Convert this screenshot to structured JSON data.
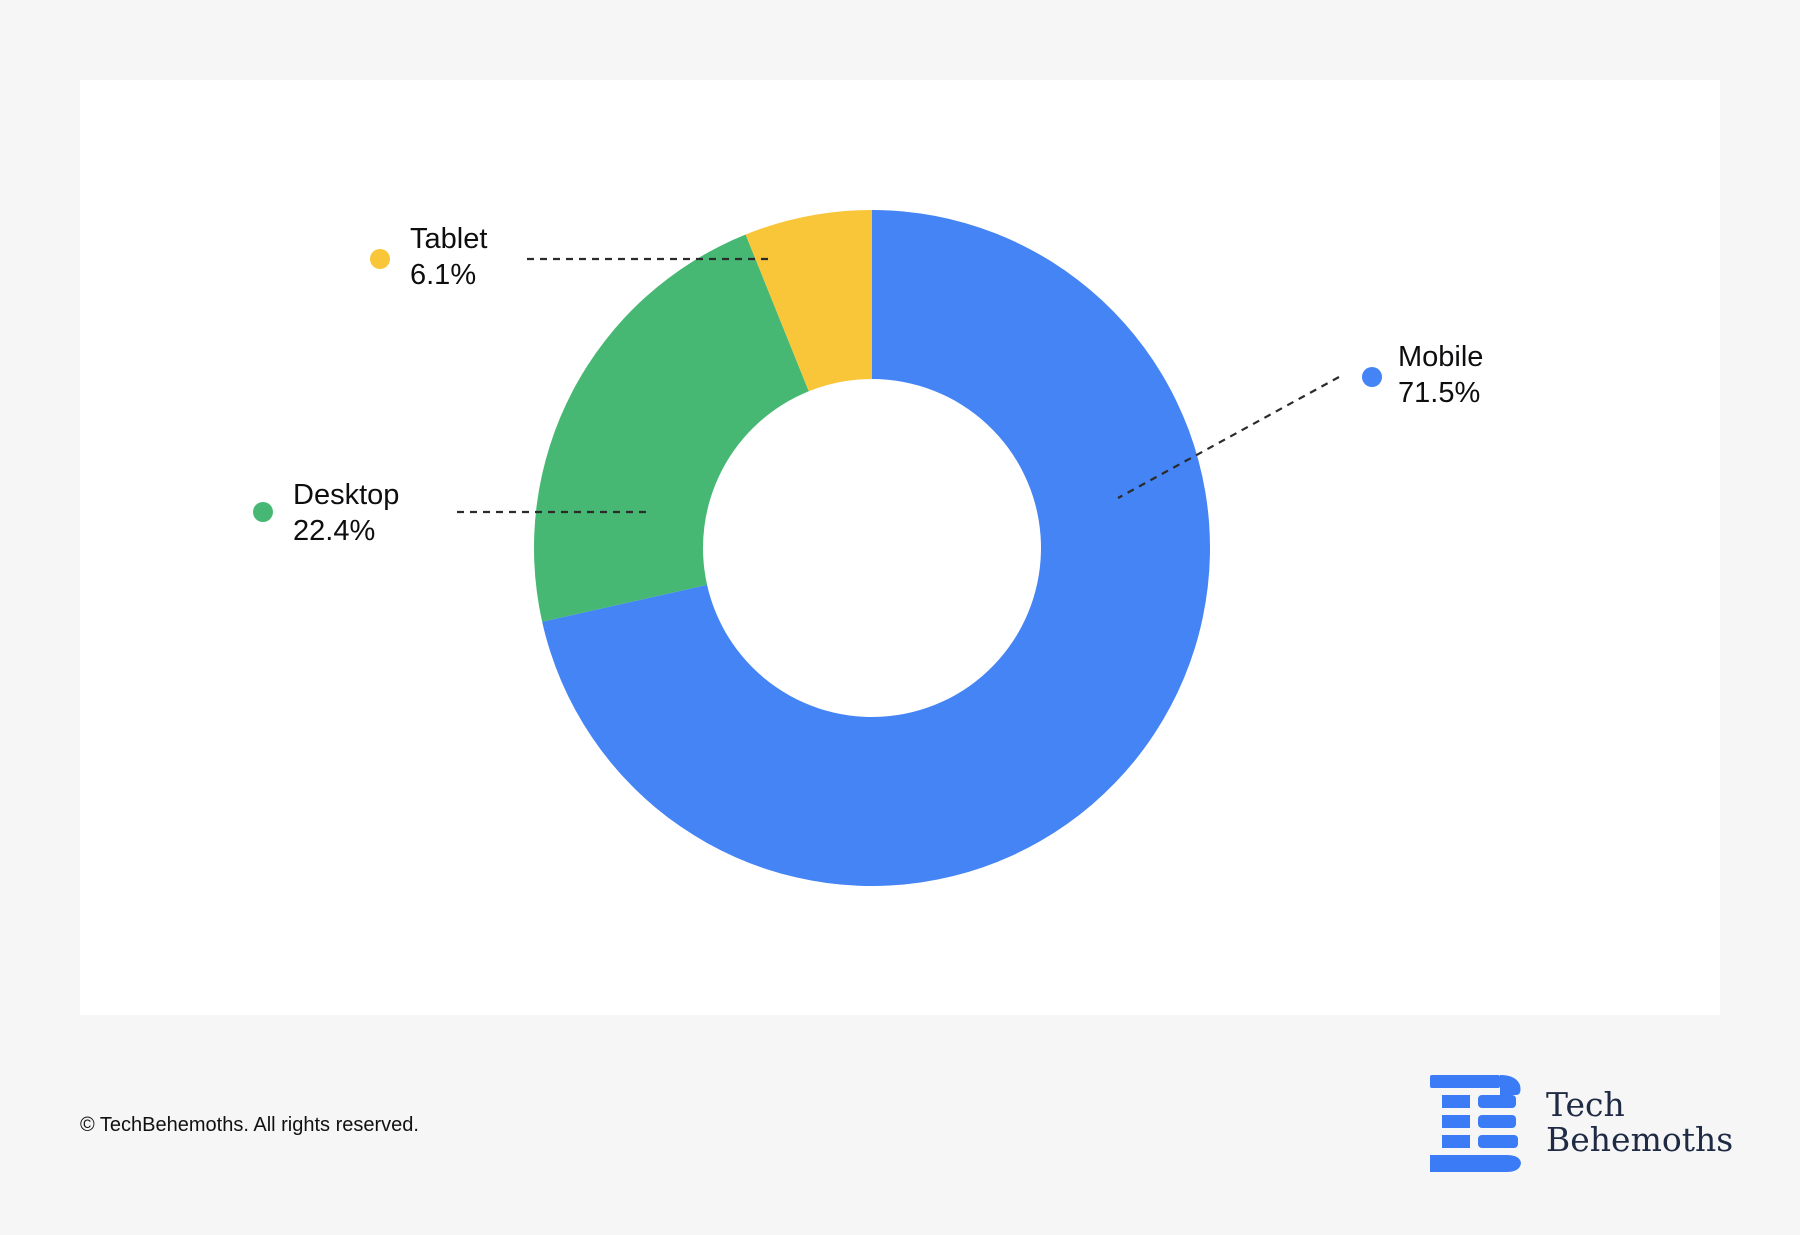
{
  "chart_data": {
    "type": "pie",
    "variant": "donut",
    "title": "",
    "slices": [
      {
        "label": "Mobile",
        "value": 71.5,
        "value_label": "71.5%",
        "color": "#4484f4"
      },
      {
        "label": "Desktop",
        "value": 22.4,
        "value_label": "22.4%",
        "color": "#46b873"
      },
      {
        "label": "Tablet",
        "value": 6.1,
        "value_label": "6.1%",
        "color": "#f9c63a"
      }
    ],
    "legend_placement": "outside labels with dashed leader lines"
  },
  "footer": {
    "copyright": "© TechBehemoths. All rights reserved."
  },
  "brand": {
    "logo_icon": "techbehemoths-logo-icon",
    "name_line1": "Tech",
    "name_line2": "Behemoths",
    "logo_color": "#3b7bf6",
    "text_color": "#1f2a44"
  }
}
